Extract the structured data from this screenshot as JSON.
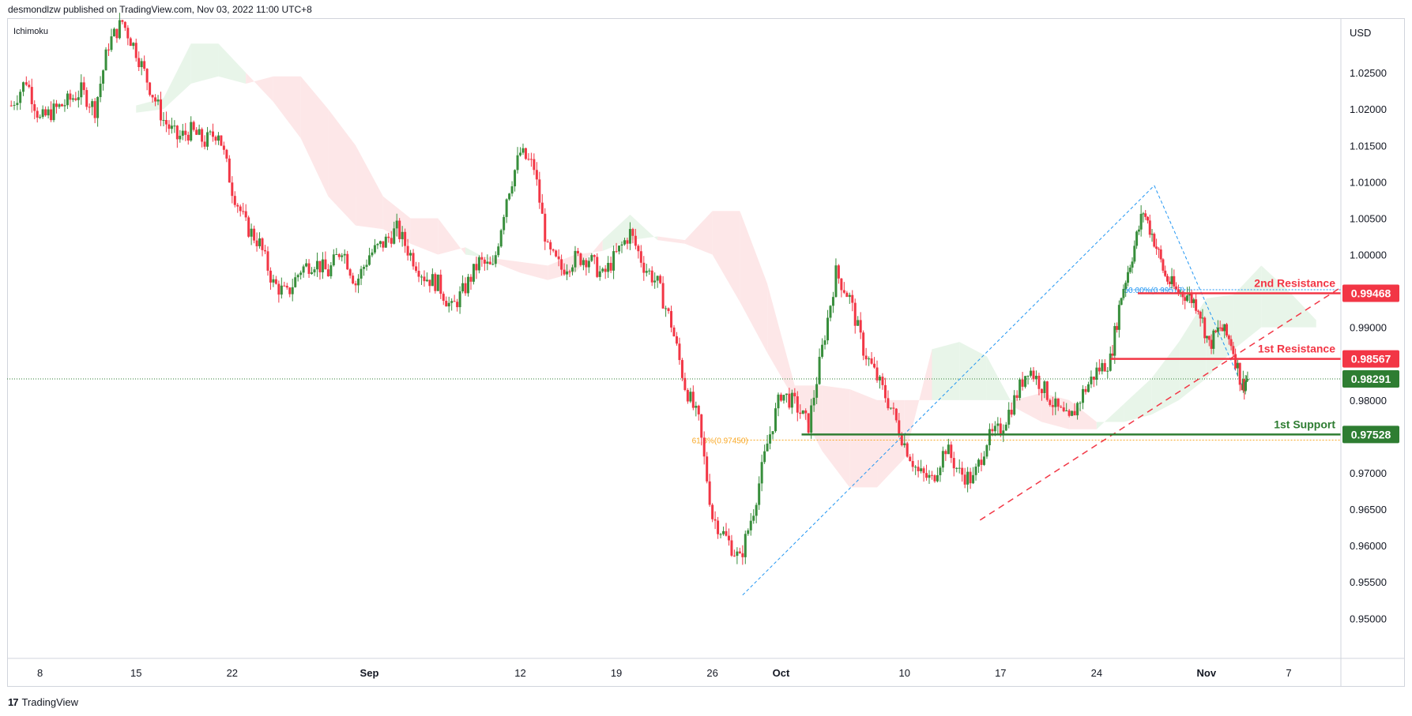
{
  "header": {
    "publisher": "desmondlzw published on TradingView.com, Nov 03, 2022 11:00 UTC+8",
    "indicator": "Ichimoku",
    "currency": "USD"
  },
  "footer": {
    "brand": "TradingView",
    "logo_icon": "tradingview-logo-icon"
  },
  "colors": {
    "bull": "#388e3c",
    "bear": "#f23645",
    "resistance": "#f23645",
    "support": "#2e7d32",
    "fib": "#2196f3",
    "fib618": "#f9a825",
    "cloud_bull": "#e8f5e9",
    "cloud_bear": "#fde7e8",
    "last_price": "#2e7d32"
  },
  "chart_data": {
    "type": "candlestick",
    "title": "",
    "ylim": [
      0.9445,
      1.0325
    ],
    "y_ticks": [
      "1.02500",
      "1.02000",
      "1.01500",
      "1.01000",
      "1.00500",
      "1.00000",
      "0.99000",
      "0.98000",
      "0.97000",
      "0.96500",
      "0.96000",
      "0.95500",
      "0.95000"
    ],
    "y_tick_values": [
      1.025,
      1.02,
      1.015,
      1.01,
      1.005,
      1.0,
      0.99,
      0.98,
      0.97,
      0.965,
      0.96,
      0.955,
      0.95
    ],
    "x_ticks": [
      {
        "label": "8",
        "day": 8
      },
      {
        "label": "15",
        "day": 15
      },
      {
        "label": "22",
        "day": 22
      },
      {
        "label": "Sep",
        "day": 32
      },
      {
        "label": "12",
        "day": 43
      },
      {
        "label": "19",
        "day": 50
      },
      {
        "label": "26",
        "day": 57
      },
      {
        "label": "Oct",
        "day": 62
      },
      {
        "label": "10",
        "day": 71
      },
      {
        "label": "17",
        "day": 78
      },
      {
        "label": "24",
        "day": 85
      },
      {
        "label": "Nov",
        "day": 93
      },
      {
        "label": "7",
        "day": 99
      }
    ],
    "x_range_days": [
      5.6,
      102.8
    ],
    "closes": [
      {
        "day": 5.9,
        "close": 1.0205
      },
      {
        "day": 7.0,
        "close": 1.024
      },
      {
        "day": 8.0,
        "close": 1.0185
      },
      {
        "day": 9.0,
        "close": 1.0198
      },
      {
        "day": 10.0,
        "close": 1.021
      },
      {
        "day": 11.0,
        "close": 1.0225
      },
      {
        "day": 12.0,
        "close": 1.02
      },
      {
        "day": 13.0,
        "close": 1.029
      },
      {
        "day": 14.0,
        "close": 1.032
      },
      {
        "day": 15.0,
        "close": 1.028
      },
      {
        "day": 16.0,
        "close": 1.023
      },
      {
        "day": 17.0,
        "close": 1.0185
      },
      {
        "day": 18.0,
        "close": 1.016
      },
      {
        "day": 19.0,
        "close": 1.017
      },
      {
        "day": 20.0,
        "close": 1.0155
      },
      {
        "day": 21.0,
        "close": 1.017
      },
      {
        "day": 22.0,
        "close": 1.009
      },
      {
        "day": 23.0,
        "close": 1.004
      },
      {
        "day": 24.0,
        "close": 1.0015
      },
      {
        "day": 25.0,
        "close": 0.996
      },
      {
        "day": 26.0,
        "close": 0.9945
      },
      {
        "day": 27.0,
        "close": 0.998
      },
      {
        "day": 28.0,
        "close": 0.999
      },
      {
        "day": 29.0,
        "close": 0.9975
      },
      {
        "day": 30.0,
        "close": 1.001
      },
      {
        "day": 31.0,
        "close": 0.996
      },
      {
        "day": 32.0,
        "close": 1.0
      },
      {
        "day": 33.0,
        "close": 1.0015
      },
      {
        "day": 34.0,
        "close": 1.0035
      },
      {
        "day": 35.0,
        "close": 1.0
      },
      {
        "day": 36.0,
        "close": 0.997
      },
      {
        "day": 37.0,
        "close": 0.996
      },
      {
        "day": 38.0,
        "close": 0.9925
      },
      {
        "day": 39.0,
        "close": 0.9955
      },
      {
        "day": 40.0,
        "close": 0.999
      },
      {
        "day": 41.0,
        "close": 0.998
      },
      {
        "day": 42.0,
        "close": 1.008
      },
      {
        "day": 43.0,
        "close": 1.014
      },
      {
        "day": 44.0,
        "close": 1.012
      },
      {
        "day": 45.0,
        "close": 1.0005
      },
      {
        "day": 46.0,
        "close": 0.998
      },
      {
        "day": 47.0,
        "close": 0.9995
      },
      {
        "day": 48.0,
        "close": 0.9995
      },
      {
        "day": 49.0,
        "close": 0.997
      },
      {
        "day": 50.0,
        "close": 1.0
      },
      {
        "day": 51.0,
        "close": 1.003
      },
      {
        "day": 52.0,
        "close": 0.9985
      },
      {
        "day": 53.0,
        "close": 0.996
      },
      {
        "day": 54.0,
        "close": 0.9905
      },
      {
        "day": 55.0,
        "close": 0.982
      },
      {
        "day": 56.0,
        "close": 0.977
      },
      {
        "day": 57.0,
        "close": 0.964
      },
      {
        "day": 58.0,
        "close": 0.961
      },
      {
        "day": 59.0,
        "close": 0.958
      },
      {
        "day": 60.0,
        "close": 0.965
      },
      {
        "day": 61.0,
        "close": 0.974
      },
      {
        "day": 62.0,
        "close": 0.981
      },
      {
        "day": 63.0,
        "close": 0.9795
      },
      {
        "day": 64.0,
        "close": 0.9765
      },
      {
        "day": 65.0,
        "close": 0.987
      },
      {
        "day": 66.0,
        "close": 0.9975
      },
      {
        "day": 67.0,
        "close": 0.994
      },
      {
        "day": 68.0,
        "close": 0.987
      },
      {
        "day": 69.0,
        "close": 0.983
      },
      {
        "day": 70.0,
        "close": 0.979
      },
      {
        "day": 71.0,
        "close": 0.974
      },
      {
        "day": 72.0,
        "close": 0.97
      },
      {
        "day": 73.0,
        "close": 0.969
      },
      {
        "day": 74.0,
        "close": 0.9735
      },
      {
        "day": 75.0,
        "close": 0.97
      },
      {
        "day": 76.0,
        "close": 0.969
      },
      {
        "day": 77.0,
        "close": 0.9745
      },
      {
        "day": 78.0,
        "close": 0.976
      },
      {
        "day": 79.0,
        "close": 0.98
      },
      {
        "day": 80.0,
        "close": 0.9845
      },
      {
        "day": 81.0,
        "close": 0.982
      },
      {
        "day": 82.0,
        "close": 0.979
      },
      {
        "day": 83.0,
        "close": 0.977
      },
      {
        "day": 84.0,
        "close": 0.981
      },
      {
        "day": 85.0,
        "close": 0.984
      },
      {
        "day": 86.0,
        "close": 0.9855
      },
      {
        "day": 86.8,
        "close": 0.9945
      },
      {
        "day": 87.6,
        "close": 1.0
      },
      {
        "day": 88.4,
        "close": 1.006
      },
      {
        "day": 89.2,
        "close": 1.002
      },
      {
        "day": 90.0,
        "close": 0.997
      },
      {
        "day": 90.8,
        "close": 0.995
      },
      {
        "day": 91.6,
        "close": 0.9945
      },
      {
        "day": 92.4,
        "close": 0.993
      },
      {
        "day": 93.2,
        "close": 0.9875
      },
      {
        "day": 94.0,
        "close": 0.99
      },
      {
        "day": 94.8,
        "close": 0.988
      },
      {
        "day": 95.6,
        "close": 0.982
      },
      {
        "day": 96.0,
        "close": 0.9829
      }
    ],
    "ichimoku_cloud": [
      {
        "day": 15,
        "span_a": 1.0205,
        "span_b": 1.0195
      },
      {
        "day": 17,
        "span_a": 1.0215,
        "span_b": 1.02
      },
      {
        "day": 19,
        "span_a": 1.029,
        "span_b": 1.0235
      },
      {
        "day": 21,
        "span_a": 1.029,
        "span_b": 1.0245
      },
      {
        "day": 23,
        "span_a": 1.025,
        "span_b": 1.0235
      },
      {
        "day": 25,
        "span_a": 1.021,
        "span_b": 1.0245
      },
      {
        "day": 27,
        "span_a": 1.016,
        "span_b": 1.0245
      },
      {
        "day": 29,
        "span_a": 1.008,
        "span_b": 1.02
      },
      {
        "day": 31,
        "span_a": 1.004,
        "span_b": 1.015
      },
      {
        "day": 33,
        "span_a": 1.0035,
        "span_b": 1.008
      },
      {
        "day": 35,
        "span_a": 1.0015,
        "span_b": 1.005
      },
      {
        "day": 37,
        "span_a": 1.0,
        "span_b": 1.005
      },
      {
        "day": 39,
        "span_a": 1.001,
        "span_b": 1.0
      },
      {
        "day": 41,
        "span_a": 0.999,
        "span_b": 0.9995
      },
      {
        "day": 43,
        "span_a": 0.9975,
        "span_b": 0.999
      },
      {
        "day": 45,
        "span_a": 0.9965,
        "span_b": 0.9985
      },
      {
        "day": 47,
        "span_a": 0.9975,
        "span_b": 1.0
      },
      {
        "day": 49,
        "span_a": 1.002,
        "span_b": 1.0005
      },
      {
        "day": 51,
        "span_a": 1.0055,
        "span_b": 1.002
      },
      {
        "day": 53,
        "span_a": 1.002,
        "span_b": 1.0025
      },
      {
        "day": 55,
        "span_a": 1.0015,
        "span_b": 1.002
      },
      {
        "day": 57,
        "span_a": 1.0,
        "span_b": 1.006
      },
      {
        "day": 59,
        "span_a": 0.9935,
        "span_b": 1.006
      },
      {
        "day": 61,
        "span_a": 0.9865,
        "span_b": 0.996
      },
      {
        "day": 63,
        "span_a": 0.98,
        "span_b": 0.982
      },
      {
        "day": 65,
        "span_a": 0.973,
        "span_b": 0.982
      },
      {
        "day": 67,
        "span_a": 0.968,
        "span_b": 0.9815
      },
      {
        "day": 69,
        "span_a": 0.968,
        "span_b": 0.98
      },
      {
        "day": 71,
        "span_a": 0.972,
        "span_b": 0.98
      },
      {
        "day": 73,
        "span_a": 0.987,
        "span_b": 0.98
      },
      {
        "day": 75,
        "span_a": 0.988,
        "span_b": 0.98
      },
      {
        "day": 77,
        "span_a": 0.986,
        "span_b": 0.98
      },
      {
        "day": 79,
        "span_a": 0.979,
        "span_b": 0.98
      },
      {
        "day": 81,
        "span_a": 0.977,
        "span_b": 0.981
      },
      {
        "day": 83,
        "span_a": 0.976,
        "span_b": 0.98
      },
      {
        "day": 85,
        "span_a": 0.976,
        "span_b": 0.977
      },
      {
        "day": 87,
        "span_a": 0.9795,
        "span_b": 0.977
      },
      {
        "day": 89,
        "span_a": 0.983,
        "span_b": 0.978
      },
      {
        "day": 91,
        "span_a": 0.988,
        "span_b": 0.98
      },
      {
        "day": 93,
        "span_a": 0.994,
        "span_b": 0.983
      },
      {
        "day": 95,
        "span_a": 0.9945,
        "span_b": 0.987
      },
      {
        "day": 97,
        "span_a": 0.9985,
        "span_b": 0.99
      },
      {
        "day": 99,
        "span_a": 0.995,
        "span_b": 0.99
      },
      {
        "day": 101,
        "span_a": 0.991,
        "span_b": 0.99
      }
    ],
    "levels": [
      {
        "name": "2nd Resistance",
        "value": 0.99468,
        "label": "0.99468",
        "color": "#f23645",
        "start_day": 88.0
      },
      {
        "name": "1st Resistance",
        "value": 0.98567,
        "label": "0.98567",
        "color": "#f23645",
        "start_day": 86.0
      },
      {
        "name": "1st Support",
        "value": 0.97528,
        "label": "0.97528",
        "color": "#2e7d32",
        "start_day": 63.5
      }
    ],
    "last_price": {
      "value": 0.98291,
      "label": "0.98291"
    },
    "fib_labels": [
      {
        "text": "61.8%(0.97450)",
        "value": 0.9745,
        "start_day": 55.5,
        "color": "#f9a825"
      },
      {
        "text": "50.00%(0.99517)",
        "value": 0.99517,
        "start_day": 87.0,
        "color": "#2196f3"
      }
    ],
    "trendline": {
      "from": {
        "day": 76.5,
        "value": 0.9635
      },
      "to": {
        "day": 102.8,
        "value": 0.9955
      },
      "color": "#f23645"
    },
    "fib_diagonals": [
      {
        "from": {
          "day": 59.2,
          "value": 0.9532
        },
        "to": {
          "day": 89.2,
          "value": 1.0095
        }
      },
      {
        "from": {
          "day": 89.2,
          "value": 1.0095
        },
        "to": {
          "day": 95.6,
          "value": 0.982
        }
      }
    ]
  }
}
